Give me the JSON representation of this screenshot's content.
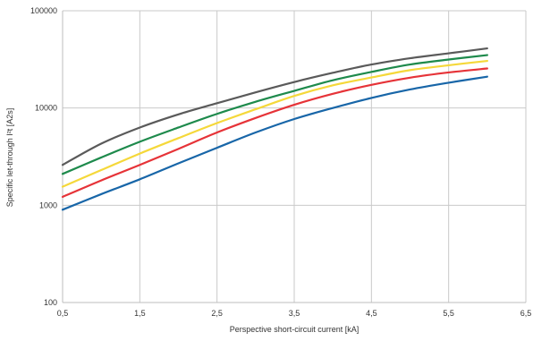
{
  "chart_data": {
    "type": "line",
    "title": "",
    "xlabel": "Perspective short-circuit current [kA]",
    "ylabel": "Specific let-through I²t [A2s]",
    "xlim": [
      0.5,
      6.5
    ],
    "ylim": [
      100,
      100000
    ],
    "yscale": "log",
    "grid": true,
    "x_ticks": [
      0.5,
      1.5,
      2.5,
      3.5,
      4.5,
      5.5,
      6.5
    ],
    "x_tick_labels": [
      "0,5",
      "1,5",
      "2,5",
      "3,5",
      "4,5",
      "5,5",
      "6,5"
    ],
    "y_ticks": [
      100,
      1000,
      10000,
      100000
    ],
    "y_tick_labels": [
      "100",
      "1000",
      "10000",
      "100000"
    ],
    "x": [
      0.5,
      1.0,
      1.5,
      2.0,
      2.5,
      3.0,
      3.5,
      4.0,
      4.5,
      5.0,
      5.5,
      6.0
    ],
    "series": [
      {
        "color": "#5a5a5a",
        "values": [
          2600,
          4300,
          6300,
          8600,
          11200,
          14500,
          18500,
          23000,
          28000,
          32500,
          36500,
          41000
        ]
      },
      {
        "color": "#1e8a4c",
        "values": [
          2100,
          3100,
          4500,
          6300,
          8700,
          11600,
          15000,
          19300,
          23500,
          28000,
          31500,
          35000
        ]
      },
      {
        "color": "#f5d83a",
        "values": [
          1550,
          2300,
          3400,
          4900,
          7000,
          9700,
          13300,
          17100,
          20600,
          24500,
          27500,
          30500
        ]
      },
      {
        "color": "#e63338",
        "values": [
          1220,
          1800,
          2600,
          3800,
          5600,
          7900,
          10800,
          14000,
          17300,
          20500,
          23200,
          25500
        ]
      },
      {
        "color": "#1866a8",
        "values": [
          900,
          1300,
          1850,
          2700,
          3900,
          5600,
          7700,
          10000,
          12700,
          15500,
          18200,
          21000
        ]
      }
    ]
  }
}
